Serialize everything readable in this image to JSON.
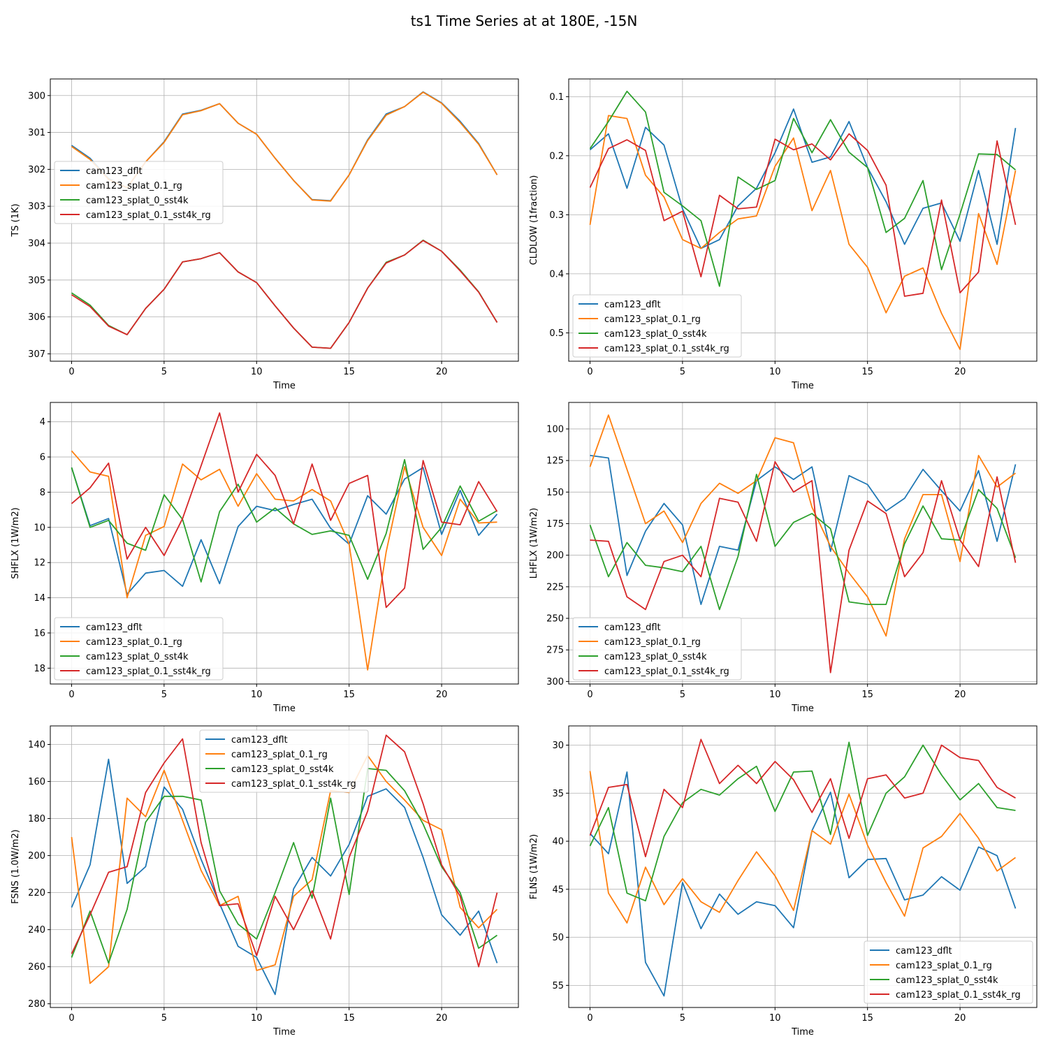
{
  "figure_title": "ts1 Time Series at at 180E, -15N",
  "colors": {
    "cam123_dflt": "#1f77b4",
    "cam123_splat_0.1_rg": "#ff7f0e",
    "cam123_splat_0_sst4k": "#2ca02c",
    "cam123_splat_0.1_sst4k_rg": "#d62728",
    "grid": "#b0b0b0"
  },
  "chart_data": [
    {
      "type": "line",
      "xlabel": "Time",
      "ylabel": "TS (1K)",
      "ylim": [
        307.2,
        299.55
      ],
      "xlim": [
        -1.15,
        24.15
      ],
      "xticks": [
        0,
        5,
        10,
        15,
        20
      ],
      "yticks": [
        300,
        301,
        302,
        303,
        304,
        305,
        306,
        307
      ],
      "legend_position": "center-left",
      "grid": true,
      "x": [
        0,
        1,
        2,
        3,
        4,
        5,
        6,
        7,
        8,
        9,
        10,
        11,
        12,
        13,
        14,
        15,
        16,
        17,
        18,
        19,
        20,
        21,
        22,
        23
      ],
      "series": [
        {
          "name": "cam123_dflt",
          "values": [
            301.35,
            301.7,
            302.25,
            302.5,
            301.8,
            301.25,
            300.5,
            300.4,
            300.22,
            300.75,
            301.05,
            301.7,
            302.3,
            302.82,
            302.85,
            302.15,
            301.2,
            300.5,
            300.3,
            299.9,
            300.2,
            300.7,
            301.3,
            302.15
          ]
        },
        {
          "name": "cam123_splat_0.1_rg",
          "values": [
            301.38,
            301.73,
            302.27,
            302.5,
            301.8,
            301.27,
            300.52,
            300.41,
            300.22,
            300.75,
            301.05,
            301.7,
            302.3,
            302.83,
            302.86,
            302.15,
            301.22,
            300.53,
            300.3,
            299.91,
            300.21,
            300.73,
            301.32,
            302.15
          ]
        },
        {
          "name": "cam123_splat_0_sst4k",
          "values": [
            305.35,
            305.68,
            306.23,
            306.48,
            305.77,
            305.25,
            304.51,
            304.42,
            304.26,
            304.78,
            305.07,
            305.7,
            306.3,
            306.82,
            306.85,
            306.15,
            305.22,
            304.52,
            304.32,
            303.92,
            304.22,
            304.73,
            305.32,
            306.15
          ]
        },
        {
          "name": "cam123_splat_0.1_sst4k_rg",
          "values": [
            305.4,
            305.72,
            306.25,
            306.48,
            305.77,
            305.25,
            304.51,
            304.42,
            304.26,
            304.78,
            305.07,
            305.7,
            306.3,
            306.82,
            306.85,
            306.15,
            305.22,
            304.54,
            304.32,
            303.93,
            304.22,
            304.75,
            305.33,
            306.15
          ]
        }
      ]
    },
    {
      "type": "line",
      "xlabel": "Time",
      "ylabel": "CLDLOW (1fraction)",
      "ylim": [
        0.548,
        0.07
      ],
      "xlim": [
        -1.15,
        24.15
      ],
      "xticks": [
        0,
        5,
        10,
        15,
        20
      ],
      "yticks": [
        0.1,
        0.2,
        0.3,
        0.4,
        0.5
      ],
      "legend_position": "lower-left",
      "grid": true,
      "x": [
        0,
        1,
        2,
        3,
        4,
        5,
        6,
        7,
        8,
        9,
        10,
        11,
        12,
        13,
        14,
        15,
        16,
        17,
        18,
        19,
        20,
        21,
        22,
        23
      ],
      "series": [
        {
          "name": "cam123_dflt",
          "values": [
            0.19,
            0.163,
            0.255,
            0.152,
            0.182,
            0.29,
            0.357,
            0.342,
            0.285,
            0.255,
            0.195,
            0.121,
            0.211,
            0.202,
            0.142,
            0.22,
            0.278,
            0.35,
            0.289,
            0.28,
            0.345,
            0.225,
            0.35,
            0.153
          ]
        },
        {
          "name": "cam123_splat_0.1_rg",
          "values": [
            0.317,
            0.132,
            0.137,
            0.233,
            0.27,
            0.342,
            0.357,
            0.33,
            0.307,
            0.302,
            0.218,
            0.17,
            0.293,
            0.225,
            0.35,
            0.389,
            0.466,
            0.404,
            0.39,
            0.467,
            0.528,
            0.298,
            0.384,
            0.225
          ]
        },
        {
          "name": "cam123_splat_0_sst4k",
          "values": [
            0.188,
            0.142,
            0.091,
            0.126,
            0.262,
            0.285,
            0.31,
            0.421,
            0.236,
            0.257,
            0.242,
            0.137,
            0.195,
            0.139,
            0.194,
            0.22,
            0.33,
            0.306,
            0.242,
            0.393,
            0.299,
            0.197,
            0.198,
            0.224
          ]
        },
        {
          "name": "cam123_splat_0.1_sst4k_rg",
          "values": [
            0.254,
            0.188,
            0.173,
            0.191,
            0.31,
            0.294,
            0.405,
            0.267,
            0.29,
            0.287,
            0.172,
            0.19,
            0.18,
            0.207,
            0.163,
            0.191,
            0.25,
            0.438,
            0.433,
            0.275,
            0.432,
            0.397,
            0.175,
            0.317
          ]
        }
      ]
    },
    {
      "type": "line",
      "xlabel": "Time",
      "ylabel": "SHFLX (1W/m2)",
      "ylim": [
        18.9,
        2.9
      ],
      "xlim": [
        -1.15,
        24.15
      ],
      "xticks": [
        0,
        5,
        10,
        15,
        20
      ],
      "yticks": [
        4,
        6,
        8,
        10,
        12,
        14,
        16,
        18
      ],
      "legend_position": "lower-left",
      "grid": true,
      "x": [
        0,
        1,
        2,
        3,
        4,
        5,
        6,
        7,
        8,
        9,
        10,
        11,
        12,
        13,
        14,
        15,
        16,
        17,
        18,
        19,
        20,
        21,
        22,
        23
      ],
      "series": [
        {
          "name": "cam123_dflt",
          "values": [
            6.6,
            9.9,
            9.5,
            13.8,
            12.6,
            12.45,
            13.35,
            10.7,
            13.2,
            9.95,
            8.8,
            9.05,
            8.7,
            8.4,
            10.05,
            10.95,
            8.2,
            9.25,
            7.25,
            6.6,
            10.4,
            7.9,
            10.45,
            9.25
          ]
        },
        {
          "name": "cam123_splat_0.1_rg",
          "values": [
            5.65,
            6.85,
            7.1,
            14.0,
            10.45,
            9.95,
            6.4,
            7.3,
            6.7,
            8.8,
            6.95,
            8.4,
            8.5,
            7.85,
            8.5,
            10.95,
            18.1,
            11.4,
            6.55,
            10.0,
            11.6,
            8.4,
            9.75,
            9.7
          ]
        },
        {
          "name": "cam123_splat_0_sst4k",
          "values": [
            6.6,
            10.0,
            9.6,
            10.9,
            11.3,
            8.15,
            9.55,
            13.1,
            9.1,
            7.55,
            9.7,
            8.9,
            9.8,
            10.4,
            10.2,
            10.45,
            12.95,
            10.35,
            6.15,
            11.25,
            10.0,
            7.65,
            9.65,
            9.05
          ]
        },
        {
          "name": "cam123_splat_0.1_sst4k_rg",
          "values": [
            8.65,
            7.75,
            6.35,
            11.8,
            10.0,
            11.6,
            9.5,
            6.5,
            3.5,
            8.0,
            5.85,
            7.05,
            9.8,
            6.4,
            9.6,
            7.5,
            7.05,
            14.55,
            13.45,
            6.2,
            9.7,
            9.85,
            7.4,
            9.1
          ]
        }
      ]
    },
    {
      "type": "line",
      "xlabel": "Time",
      "ylabel": "LHFLX (1W/m2)",
      "ylim": [
        302,
        79
      ],
      "xlim": [
        -1.15,
        24.15
      ],
      "xticks": [
        0,
        5,
        10,
        15,
        20
      ],
      "yticks": [
        100,
        125,
        150,
        175,
        200,
        225,
        250,
        275,
        300
      ],
      "legend_position": "lower-left",
      "grid": true,
      "x": [
        0,
        1,
        2,
        3,
        4,
        5,
        6,
        7,
        8,
        9,
        10,
        11,
        12,
        13,
        14,
        15,
        16,
        17,
        18,
        19,
        20,
        21,
        22,
        23
      ],
      "series": [
        {
          "name": "cam123_dflt",
          "values": [
            121,
            123,
            216,
            181,
            159,
            176,
            239,
            193,
            196,
            141,
            130,
            140,
            130,
            197,
            137,
            144,
            165,
            155,
            132,
            149,
            165,
            133,
            189,
            128
          ]
        },
        {
          "name": "cam123_splat_0.1_rg",
          "values": [
            130,
            89,
            132,
            175,
            165,
            190,
            159,
            143,
            151,
            141,
            107,
            111,
            162,
            193,
            214,
            233,
            264,
            187,
            152,
            152,
            205,
            121,
            146,
            135
          ]
        },
        {
          "name": "cam123_splat_0_sst4k",
          "values": [
            176,
            217,
            190,
            208,
            210,
            213,
            193,
            243,
            201,
            136,
            193,
            174,
            167,
            179,
            237,
            239,
            239,
            191,
            161,
            187,
            188,
            148,
            163,
            202
          ]
        },
        {
          "name": "cam123_splat_0.1_sst4k_rg",
          "values": [
            188,
            189,
            233,
            243,
            205,
            200,
            217,
            155,
            158,
            189,
            126,
            150,
            141,
            293,
            196,
            157,
            167,
            217,
            198,
            141,
            188,
            209,
            138,
            206
          ]
        }
      ]
    },
    {
      "type": "line",
      "xlabel": "Time",
      "ylabel": "FSNS (1.0W/m2)",
      "ylim": [
        282,
        130
      ],
      "xlim": [
        -1.15,
        24.15
      ],
      "xticks": [
        0,
        5,
        10,
        15,
        20
      ],
      "yticks": [
        140,
        160,
        180,
        200,
        220,
        240,
        260,
        280
      ],
      "legend_position": "upper-center",
      "grid": true,
      "x": [
        0,
        1,
        2,
        3,
        4,
        5,
        6,
        7,
        8,
        9,
        10,
        11,
        12,
        13,
        14,
        15,
        16,
        17,
        18,
        19,
        20,
        21,
        22,
        23
      ],
      "series": [
        {
          "name": "cam123_dflt",
          "values": [
            228,
            205,
            148,
            215,
            206,
            163,
            175,
            202,
            226,
            249,
            255,
            275,
            218,
            201,
            211,
            194,
            168,
            164,
            174,
            201,
            232,
            243,
            230,
            258
          ]
        },
        {
          "name": "cam123_splat_0.1_rg",
          "values": [
            190,
            269,
            260,
            169,
            179,
            154,
            181,
            208,
            227,
            222,
            262,
            259,
            222,
            213,
            165,
            166,
            146,
            160,
            170,
            181,
            186,
            228,
            239,
            229
          ]
        },
        {
          "name": "cam123_splat_0_sst4k",
          "values": [
            255,
            230,
            258,
            229,
            182,
            168,
            168,
            170,
            219,
            237,
            245,
            220,
            193,
            223,
            169,
            221,
            153,
            154,
            165,
            183,
            206,
            220,
            250,
            243
          ]
        },
        {
          "name": "cam123_splat_0.1_sst4k_rg",
          "values": [
            253,
            232,
            209,
            206,
            166,
            150,
            137,
            193,
            227,
            226,
            254,
            222,
            240,
            219,
            245,
            201,
            176,
            135,
            144,
            172,
            205,
            222,
            260,
            220
          ]
        }
      ]
    },
    {
      "type": "line",
      "xlabel": "Time",
      "ylabel": "FLNS (1W/m2)",
      "ylim": [
        57.3,
        28.0
      ],
      "xlim": [
        -1.15,
        24.15
      ],
      "xticks": [
        0,
        5,
        10,
        15,
        20
      ],
      "yticks": [
        30,
        35,
        40,
        45,
        50,
        55
      ],
      "legend_position": "lower-right",
      "grid": true,
      "x": [
        0,
        1,
        2,
        3,
        4,
        5,
        6,
        7,
        8,
        9,
        10,
        11,
        12,
        13,
        14,
        15,
        16,
        17,
        18,
        19,
        20,
        21,
        22,
        23
      ],
      "series": [
        {
          "name": "cam123_dflt",
          "values": [
            39.2,
            41.3,
            32.8,
            52.6,
            56.1,
            44.3,
            49.1,
            45.5,
            47.6,
            46.3,
            46.7,
            49.0,
            38.9,
            34.9,
            43.8,
            41.9,
            41.8,
            46.1,
            45.6,
            43.7,
            45.1,
            40.6,
            41.5,
            47.0
          ]
        },
        {
          "name": "cam123_splat_0.1_rg",
          "values": [
            32.7,
            45.4,
            48.5,
            42.7,
            46.6,
            43.9,
            46.3,
            47.4,
            44.1,
            41.1,
            43.6,
            47.2,
            38.9,
            40.3,
            35.1,
            40.4,
            44.3,
            47.8,
            40.7,
            39.5,
            37.1,
            39.7,
            43.1,
            41.7
          ]
        },
        {
          "name": "cam123_splat_0_sst4k",
          "values": [
            40.5,
            36.5,
            45.4,
            46.2,
            39.5,
            36.0,
            34.6,
            35.2,
            33.5,
            32.2,
            36.9,
            32.8,
            32.7,
            39.3,
            29.7,
            39.4,
            35.0,
            33.3,
            30.0,
            33.1,
            35.7,
            34.0,
            36.5,
            36.8
          ]
        },
        {
          "name": "cam123_splat_0.1_sst4k_rg",
          "values": [
            39.4,
            34.4,
            34.1,
            41.6,
            34.6,
            36.5,
            29.4,
            34.0,
            32.1,
            34.0,
            31.7,
            33.6,
            37.0,
            33.5,
            39.7,
            33.5,
            33.1,
            35.5,
            35.0,
            30.0,
            31.3,
            31.6,
            34.4,
            35.5
          ]
        }
      ]
    }
  ]
}
